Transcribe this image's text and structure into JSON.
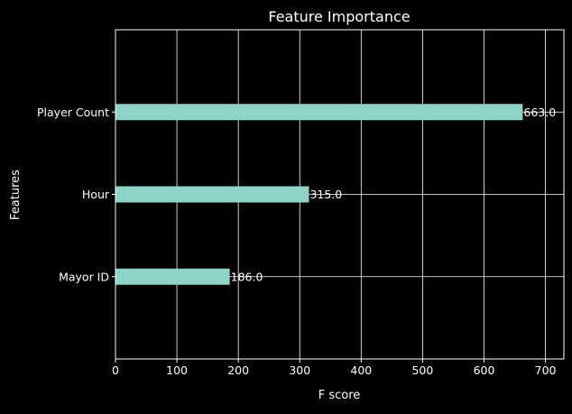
{
  "chart_data": {
    "type": "bar",
    "orientation": "horizontal",
    "title": "Feature Importance",
    "xlabel": "F score",
    "ylabel": "Features",
    "categories": [
      "Mayor ID",
      "Hour",
      "Player Count"
    ],
    "values": [
      186,
      315,
      663
    ],
    "value_labels": [
      "186.0",
      "315.0",
      "663.0"
    ],
    "xlim": [
      0,
      730
    ],
    "xticks": [
      0,
      100,
      200,
      300,
      400,
      500,
      600,
      700
    ],
    "grid": true,
    "legend": "none",
    "colors": {
      "background": "#000000",
      "bar": "#8dd3c7",
      "grid": "#ffffff",
      "text": "#ffffff"
    }
  }
}
